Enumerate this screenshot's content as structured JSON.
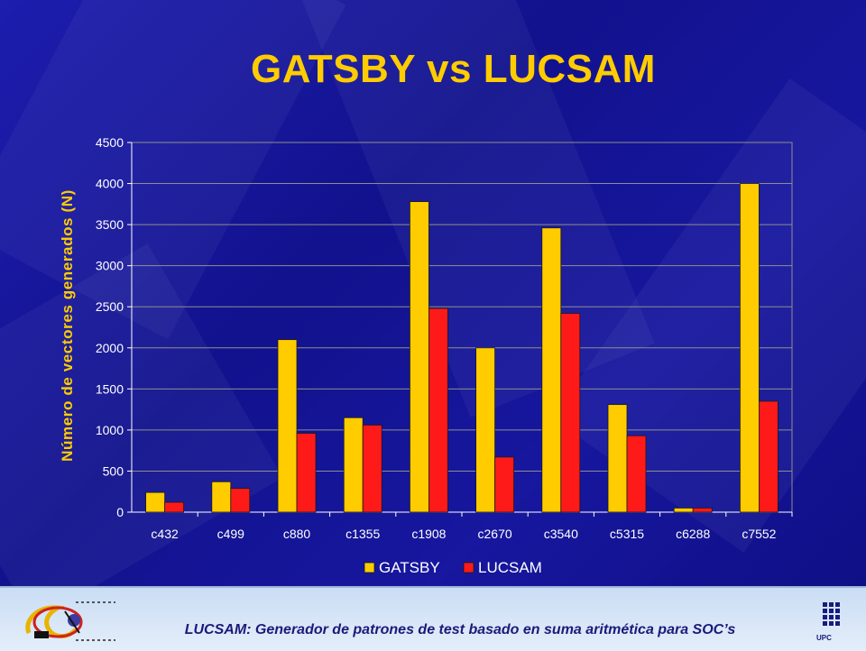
{
  "slide": {
    "title": "GATSBY vs LUCSAM",
    "footer": "LUCSAM: Generador de patrones de test basado en suma aritmética para SOC’s",
    "upc_caption": "UPC"
  },
  "colors": {
    "background": "#15159a",
    "title": "#ffcc00",
    "gatsby": "#ffcc00",
    "lucsam": "#ff1a1a",
    "axis_text": "#ffffff"
  },
  "chart_data": {
    "type": "bar",
    "title": "",
    "xlabel": "",
    "ylabel": "Número de vectores generados (N)",
    "ylim": [
      0,
      4500
    ],
    "yticks": [
      0,
      500,
      1000,
      1500,
      2000,
      2500,
      3000,
      3500,
      4000,
      4500
    ],
    "grid": true,
    "legend_position": "bottom",
    "categories": [
      "c432",
      "c499",
      "c880",
      "c1355",
      "c1908",
      "c2670",
      "c3540",
      "c5315",
      "c6288",
      "c7552"
    ],
    "series": [
      {
        "name": "GATSBY",
        "color": "#ffcc00",
        "values": [
          240,
          370,
          2100,
          1150,
          3780,
          2000,
          3460,
          1310,
          50,
          4000
        ]
      },
      {
        "name": "LUCSAM",
        "color": "#ff1a1a",
        "values": [
          120,
          290,
          960,
          1060,
          2480,
          670,
          2420,
          930,
          50,
          1350
        ]
      }
    ]
  }
}
